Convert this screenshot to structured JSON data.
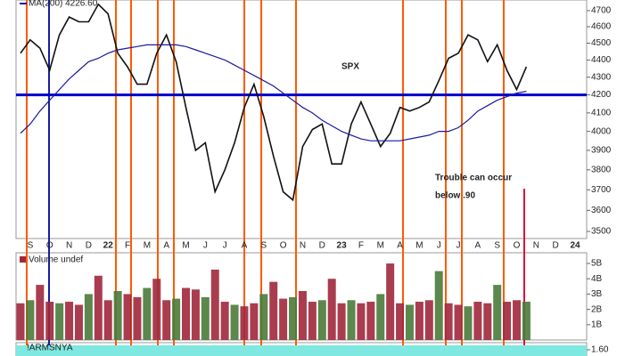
{
  "chart_data": [
    {
      "type": "line",
      "categories": [
        null,
        "S",
        null,
        "O",
        null,
        "N",
        null,
        "D",
        null,
        "22",
        null,
        "F",
        null,
        "M",
        null,
        "A",
        null,
        "M",
        null,
        "J",
        null,
        "J",
        null,
        "A",
        null,
        "S",
        null,
        "O",
        null,
        "N",
        null,
        "D",
        null,
        "23",
        null,
        "F",
        null,
        "M",
        null,
        "A",
        null,
        "M",
        null,
        "J",
        null,
        "J",
        null,
        "A",
        null,
        "S",
        null,
        "O",
        null,
        "N",
        null,
        "D",
        null,
        "24"
      ],
      "series": [
        {
          "name": "SPX",
          "color": "#111111",
          "values": [
            4440,
            4520,
            4470,
            4340,
            4550,
            4660,
            4630,
            4630,
            4740,
            4680,
            4440,
            4360,
            4260,
            4260,
            4440,
            4550,
            4390,
            4130,
            3900,
            3940,
            3690,
            3800,
            3940,
            4130,
            4260,
            4080,
            3870,
            3690,
            3650,
            3920,
            4010,
            4040,
            3830,
            3830,
            4040,
            4160,
            4040,
            3920,
            3990,
            4130,
            4110,
            4130,
            4160,
            4280,
            4410,
            4440,
            4550,
            4520,
            4390,
            4490,
            4340,
            4230,
            4360,
            null,
            null,
            null,
            null,
            null
          ]
        },
        {
          "name": "MA(200) 4226.60",
          "color": "#1a1aa0",
          "values": [
            3990,
            4040,
            4110,
            4170,
            4230,
            4290,
            4340,
            4390,
            4410,
            4440,
            4460,
            4470,
            4480,
            4490,
            4490,
            4490,
            4490,
            4480,
            4460,
            4440,
            4420,
            4400,
            4370,
            4340,
            4310,
            4280,
            4250,
            4210,
            4170,
            4130,
            4100,
            4060,
            4030,
            4000,
            3980,
            3960,
            3950,
            3950,
            3950,
            3950,
            3960,
            3970,
            3980,
            4000,
            4000,
            4020,
            4060,
            4110,
            4140,
            4170,
            4190,
            4210,
            4220,
            null,
            null,
            null,
            null,
            null
          ]
        }
      ],
      "hline": {
        "value": 4200,
        "color": "#0000cc"
      },
      "annotation": [
        "Trouble can occur",
        "below .90"
      ],
      "ylim": [
        3467,
        4767
      ],
      "log_scale": true,
      "yticks": [
        3500,
        3600,
        3700,
        3800,
        3900,
        4000,
        4100,
        4200,
        4300,
        4400,
        4500,
        4600,
        4700
      ]
    },
    {
      "type": "bar",
      "title": "Volume undef",
      "color": "#a0283c",
      "values": [
        2.4,
        2.6,
        3.6,
        2.5,
        2.4,
        2.5,
        2.3,
        3.0,
        4.2,
        2.6,
        3.2,
        3.0,
        2.8,
        3.4,
        4.0,
        2.6,
        2.7,
        3.4,
        3.3,
        2.8,
        4.6,
        2.5,
        2.3,
        2.2,
        2.4,
        3.0,
        3.8,
        2.7,
        2.8,
        3.2,
        2.5,
        2.6,
        4.0,
        2.4,
        2.6,
        2.4,
        2.5,
        3.0,
        5.0,
        2.4,
        2.3,
        2.5,
        2.6,
        4.5,
        2.4,
        2.3,
        2.2,
        2.5,
        2.4,
        3.6,
        2.5,
        2.6,
        2.5,
        null,
        null,
        null,
        null,
        null
      ],
      "ylim": [
        0,
        5.7
      ],
      "yticks": [
        {
          "value": 1,
          "label": "1B"
        },
        {
          "value": 2,
          "label": "2B"
        },
        {
          "value": 3,
          "label": "3B"
        },
        {
          "value": 4,
          "label": "4B"
        },
        {
          "value": 5,
          "label": "5B"
        }
      ]
    },
    {
      "type": "band",
      "title": "!ARMSNYA",
      "color": "#7fe8e0",
      "yticks": [
        {
          "value": 1.6,
          "label": "1.60"
        }
      ]
    }
  ]
}
